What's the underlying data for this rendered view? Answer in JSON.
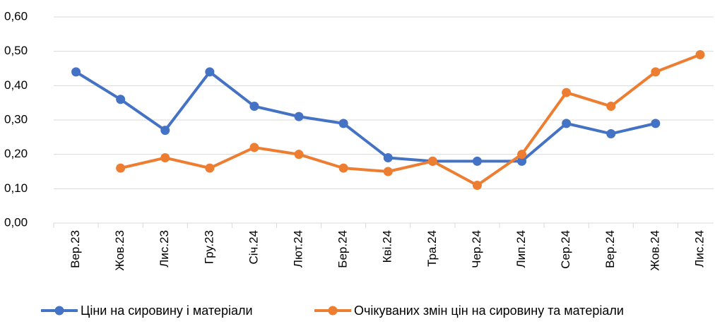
{
  "chart_data": {
    "type": "line",
    "categories": [
      "Вер.23",
      "Жов.23",
      "Лис.23",
      "Гру.23",
      "Січ.24",
      "Лют.24",
      "Бер.24",
      "Кві.24",
      "Тра.24",
      "Чер.24",
      "Лип.24",
      "Сер.24",
      "Вер.24",
      "Жов.24",
      "Лис.24"
    ],
    "series": [
      {
        "name": "Ціни на сировину і матеріали",
        "color": "#4472c4",
        "values": [
          0.44,
          0.36,
          0.27,
          0.44,
          0.34,
          0.31,
          0.29,
          0.19,
          0.18,
          0.18,
          0.18,
          0.29,
          0.26,
          0.29,
          null
        ]
      },
      {
        "name": "Очікуваних змін цін на сировину та матеріали",
        "color": "#ed7d31",
        "values": [
          null,
          0.16,
          0.19,
          0.16,
          0.22,
          0.2,
          0.16,
          0.15,
          0.18,
          0.11,
          0.2,
          0.38,
          0.34,
          0.44,
          0.49
        ]
      }
    ],
    "ylim": [
      0,
      0.6
    ],
    "yticks": [
      {
        "value": 0,
        "label": "0,00"
      },
      {
        "value": 0.1,
        "label": "0,10"
      },
      {
        "value": 0.2,
        "label": "0,20"
      },
      {
        "value": 0.3,
        "label": "0,30"
      },
      {
        "value": 0.4,
        "label": "0,40"
      },
      {
        "value": 0.5,
        "label": "0,50"
      },
      {
        "value": 0.6,
        "label": "0,60"
      }
    ],
    "grid": true,
    "legend": "bottom"
  }
}
